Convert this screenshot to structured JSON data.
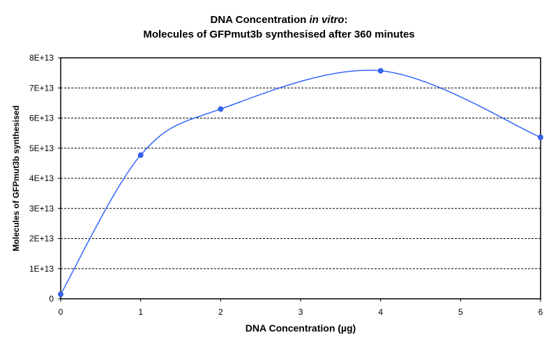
{
  "chart_data": {
    "type": "line",
    "title": {
      "line1_prefix": "DNA Concentration ",
      "line1_italic": "in vitro",
      "line1_suffix": ":",
      "line2": "Molecules of GFPmut3b synthesised after 360 minutes"
    },
    "xlabel": "DNA Concentration (µg)",
    "ylabel": "Molecules of GFPmut3b synthesised",
    "xlim": [
      0,
      6
    ],
    "ylim": [
      0,
      80000000000000.0
    ],
    "x_ticks": [
      "0",
      "1",
      "2",
      "3",
      "4",
      "5",
      "6"
    ],
    "y_ticks": [
      "0",
      "1E+13",
      "2E+13",
      "3E+13",
      "4E+13",
      "5E+13",
      "6E+13",
      "7E+13",
      "8E+13"
    ],
    "grid": "horizontal dashed",
    "smoothed": true,
    "series": [
      {
        "color": "#3366ff",
        "x": [
          0,
          1,
          2,
          4,
          6
        ],
        "y": [
          1500000000000.0,
          47700000000000.0,
          63000000000000.0,
          75700000000000.0,
          53600000000000.0
        ]
      }
    ]
  }
}
